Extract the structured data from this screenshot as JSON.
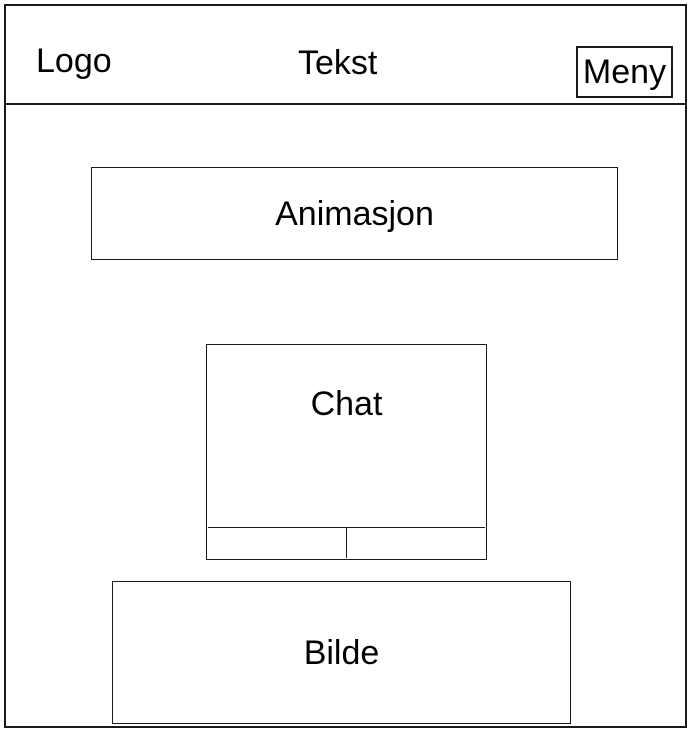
{
  "header": {
    "logo_label": "Logo",
    "title_label": "Tekst",
    "menu_label": "Meny"
  },
  "main": {
    "animation_label": "Animasjon",
    "chat_label": "Chat",
    "image_label": "Bilde"
  }
}
